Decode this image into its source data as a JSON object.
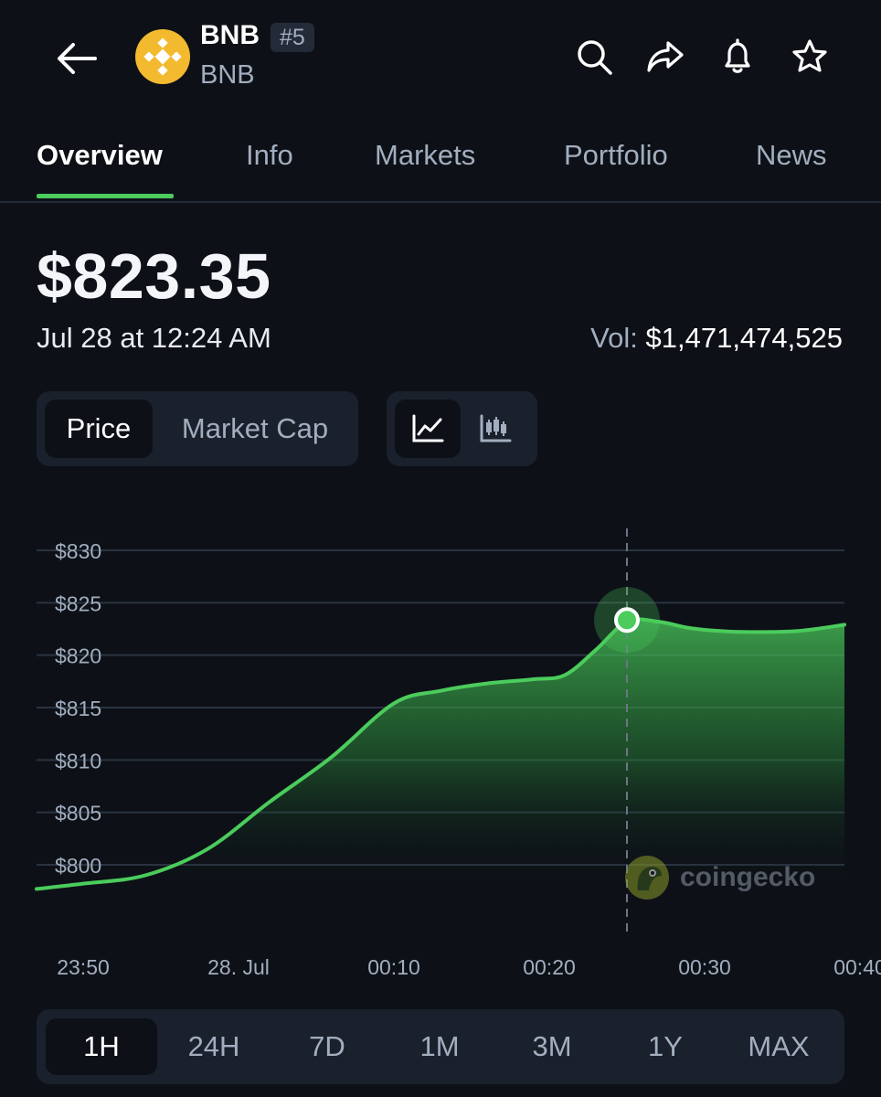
{
  "coin": {
    "name": "BNB",
    "rank": "#5",
    "symbol": "BNB"
  },
  "icons": [
    "arrow-left",
    "bnb-logo",
    "search",
    "share",
    "bell",
    "star",
    "line-chart",
    "candlestick-chart",
    "coingecko-logo"
  ],
  "tabs": [
    {
      "label": "Overview",
      "active": true
    },
    {
      "label": "Info"
    },
    {
      "label": "Markets"
    },
    {
      "label": "Portfolio"
    },
    {
      "label": "News"
    }
  ],
  "price": {
    "value": "$823.35",
    "timestamp": "Jul 28 at 12:24 AM",
    "vol_label": "Vol:",
    "vol_value": "$1,471,474,525"
  },
  "metric_toggle": {
    "options": [
      "Price",
      "Market Cap"
    ],
    "selected": "Price"
  },
  "chart_style": {
    "options": [
      "line-chart",
      "candlestick-chart"
    ],
    "selected": "line-chart"
  },
  "chart_data": {
    "type": "area",
    "y_tick_labels": [
      "$830",
      "$825",
      "$820",
      "$815",
      "$810",
      "$805",
      "$800"
    ],
    "x_tick_labels": [
      "23:50",
      "28. Jul",
      "00:10",
      "00:20",
      "00:30",
      "00:40"
    ],
    "ylim": [
      797,
      832
    ],
    "xlim": [
      -13,
      39
    ],
    "grid": true,
    "series": [
      {
        "x": [
          -13,
          -10,
          -6,
          -2,
          2,
          6,
          10,
          13,
          16,
          19,
          21,
          23,
          25,
          27,
          29,
          31,
          33,
          36,
          39
        ],
        "y": [
          797.7,
          798.2,
          799.0,
          801.5,
          806.0,
          810.3,
          815.4,
          816.6,
          817.3,
          817.7,
          818.1,
          820.5,
          823.2,
          823.2,
          822.6,
          822.3,
          822.2,
          822.3,
          822.9
        ]
      }
    ],
    "highlight": {
      "x": 25,
      "y": 823.35
    },
    "line_color": "#4bcc5c",
    "watermark": "coingecko"
  },
  "time_ranges": {
    "options": [
      "1H",
      "24H",
      "7D",
      "1M",
      "3M",
      "1Y",
      "MAX"
    ],
    "selected": "1H"
  }
}
